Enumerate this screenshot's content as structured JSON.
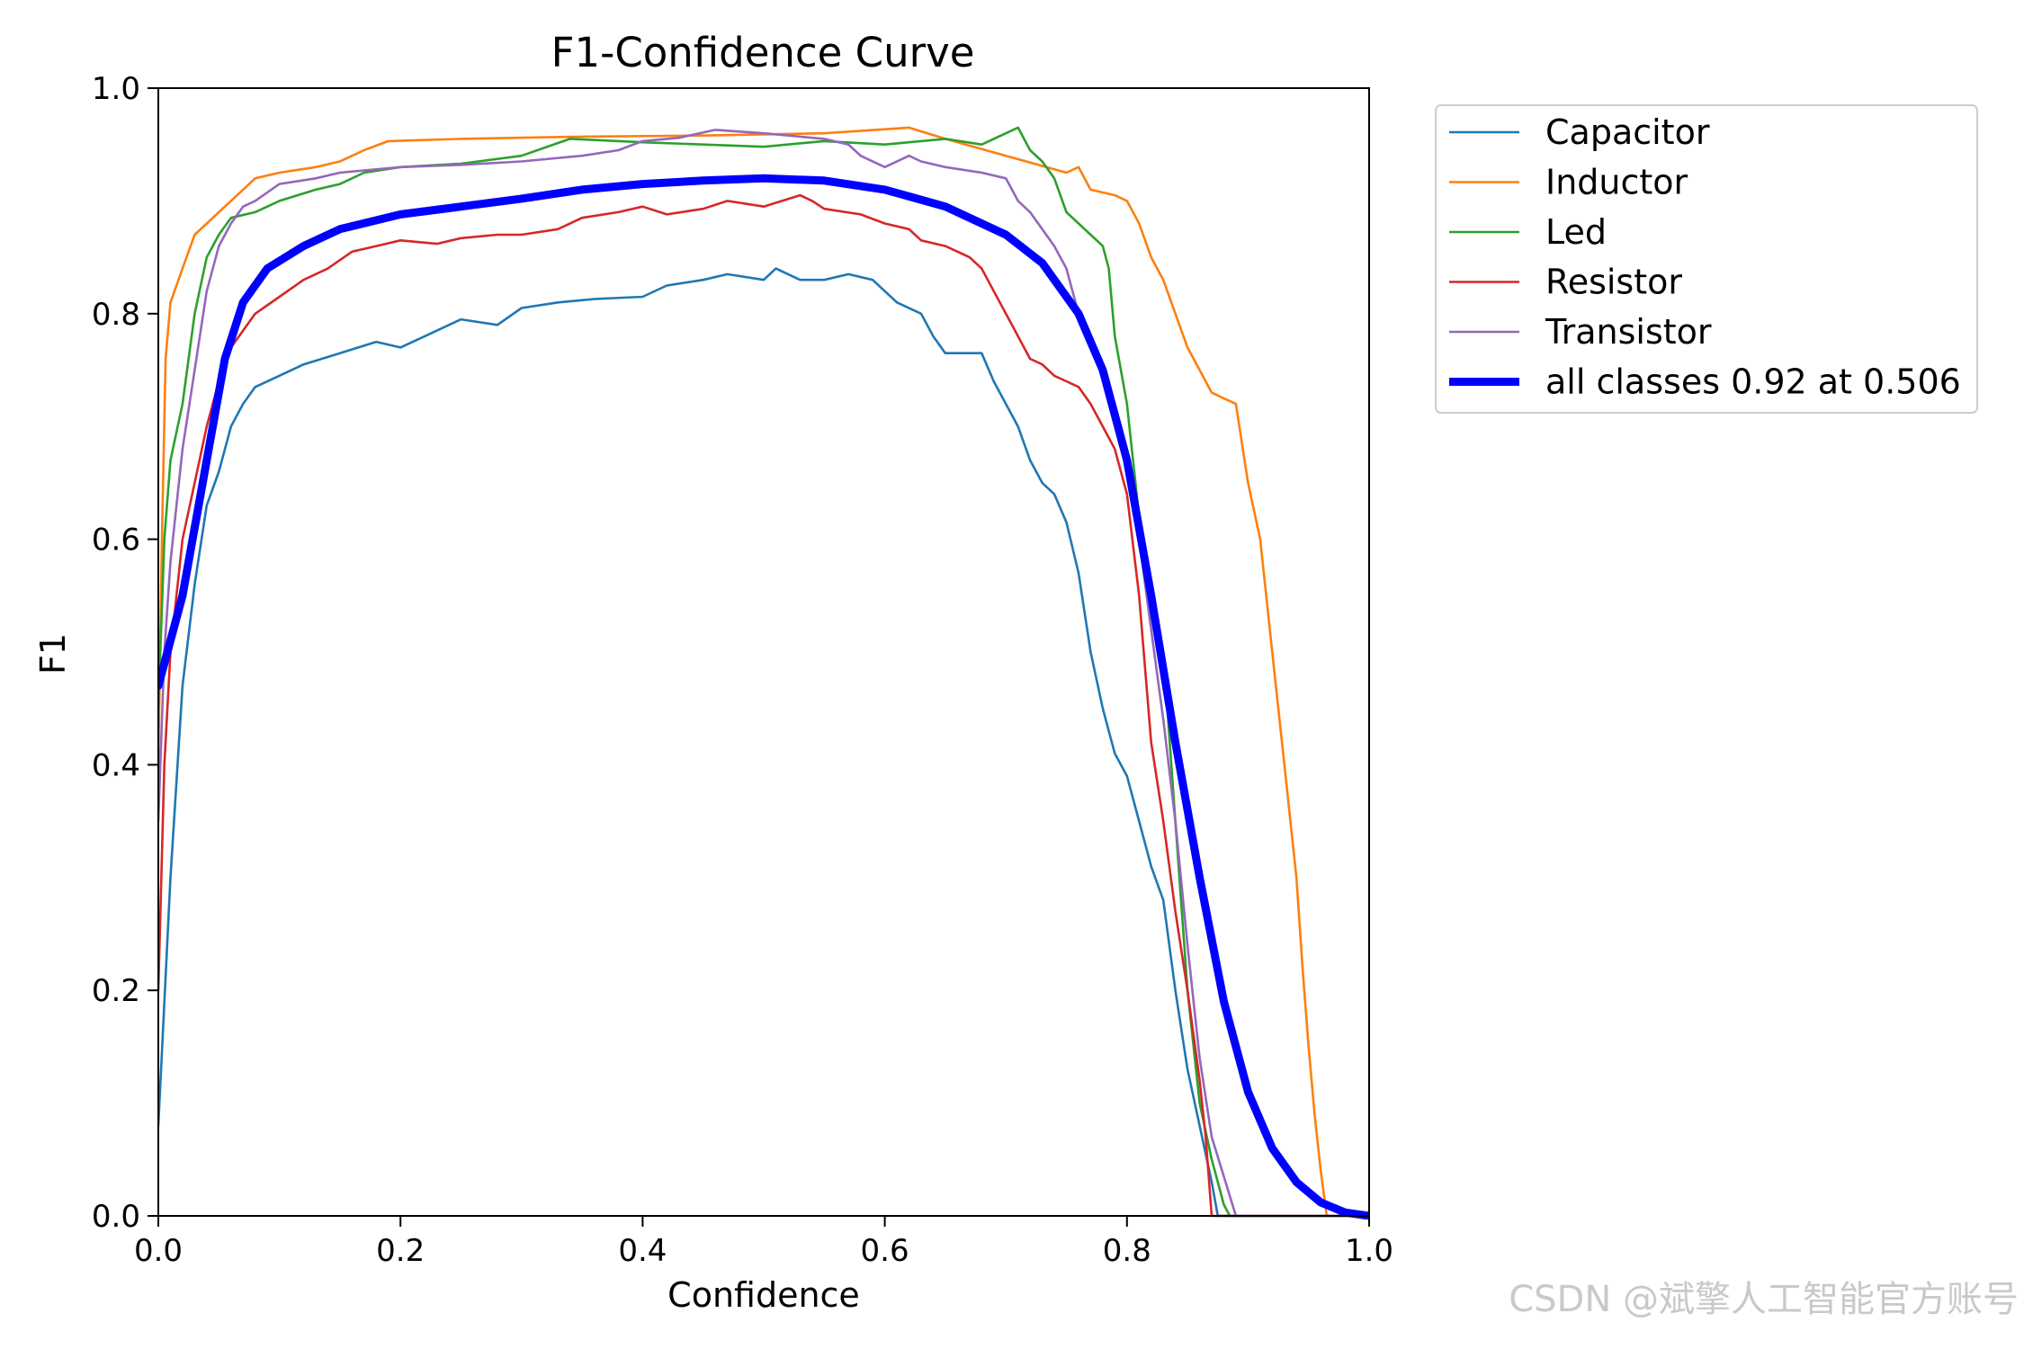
{
  "chart_data": {
    "type": "line",
    "title": "F1-Confidence Curve",
    "xlabel": "Confidence",
    "ylabel": "F1",
    "xlim": [
      0,
      1
    ],
    "ylim": [
      0,
      1
    ],
    "xticks": [
      "0.0",
      "0.2",
      "0.4",
      "0.6",
      "0.8",
      "1.0"
    ],
    "yticks": [
      "0.0",
      "0.2",
      "0.4",
      "0.6",
      "0.8",
      "1.0"
    ],
    "grid": false,
    "legend_position": "outside-top-right",
    "series": [
      {
        "name": "Capacitor",
        "color": "#1f77b4",
        "width": "thin",
        "points": [
          [
            0,
            0.08
          ],
          [
            0.01,
            0.3
          ],
          [
            0.02,
            0.47
          ],
          [
            0.03,
            0.56
          ],
          [
            0.04,
            0.63
          ],
          [
            0.05,
            0.66
          ],
          [
            0.06,
            0.7
          ],
          [
            0.07,
            0.72
          ],
          [
            0.08,
            0.735
          ],
          [
            0.1,
            0.745
          ],
          [
            0.12,
            0.755
          ],
          [
            0.15,
            0.765
          ],
          [
            0.18,
            0.775
          ],
          [
            0.2,
            0.77
          ],
          [
            0.22,
            0.78
          ],
          [
            0.25,
            0.795
          ],
          [
            0.28,
            0.79
          ],
          [
            0.3,
            0.805
          ],
          [
            0.33,
            0.81
          ],
          [
            0.36,
            0.813
          ],
          [
            0.4,
            0.815
          ],
          [
            0.42,
            0.825
          ],
          [
            0.45,
            0.83
          ],
          [
            0.47,
            0.835
          ],
          [
            0.5,
            0.83
          ],
          [
            0.51,
            0.84
          ],
          [
            0.53,
            0.83
          ],
          [
            0.55,
            0.83
          ],
          [
            0.57,
            0.835
          ],
          [
            0.59,
            0.83
          ],
          [
            0.61,
            0.81
          ],
          [
            0.63,
            0.8
          ],
          [
            0.64,
            0.78
          ],
          [
            0.65,
            0.765
          ],
          [
            0.68,
            0.765
          ],
          [
            0.69,
            0.74
          ],
          [
            0.7,
            0.72
          ],
          [
            0.71,
            0.7
          ],
          [
            0.72,
            0.67
          ],
          [
            0.73,
            0.65
          ],
          [
            0.74,
            0.64
          ],
          [
            0.75,
            0.615
          ],
          [
            0.76,
            0.57
          ],
          [
            0.77,
            0.5
          ],
          [
            0.78,
            0.45
          ],
          [
            0.79,
            0.41
          ],
          [
            0.8,
            0.39
          ],
          [
            0.81,
            0.35
          ],
          [
            0.82,
            0.31
          ],
          [
            0.83,
            0.28
          ],
          [
            0.84,
            0.2
          ],
          [
            0.85,
            0.13
          ],
          [
            0.86,
            0.08
          ],
          [
            0.87,
            0.03
          ],
          [
            0.875,
            0.0
          ],
          [
            0.9,
            0.0
          ],
          [
            1.0,
            0.0
          ]
        ]
      },
      {
        "name": "Inductor",
        "color": "#ff7f0e",
        "width": "thin",
        "points": [
          [
            0,
            0.4
          ],
          [
            0.003,
            0.6
          ],
          [
            0.006,
            0.76
          ],
          [
            0.01,
            0.81
          ],
          [
            0.02,
            0.84
          ],
          [
            0.03,
            0.87
          ],
          [
            0.04,
            0.88
          ],
          [
            0.05,
            0.89
          ],
          [
            0.06,
            0.9
          ],
          [
            0.07,
            0.91
          ],
          [
            0.08,
            0.92
          ],
          [
            0.1,
            0.925
          ],
          [
            0.13,
            0.93
          ],
          [
            0.15,
            0.935
          ],
          [
            0.17,
            0.945
          ],
          [
            0.19,
            0.953
          ],
          [
            0.25,
            0.955
          ],
          [
            0.35,
            0.957
          ],
          [
            0.45,
            0.958
          ],
          [
            0.55,
            0.96
          ],
          [
            0.62,
            0.965
          ],
          [
            0.65,
            0.955
          ],
          [
            0.7,
            0.94
          ],
          [
            0.75,
            0.925
          ],
          [
            0.76,
            0.93
          ],
          [
            0.77,
            0.91
          ],
          [
            0.79,
            0.905
          ],
          [
            0.8,
            0.9
          ],
          [
            0.81,
            0.88
          ],
          [
            0.82,
            0.85
          ],
          [
            0.83,
            0.83
          ],
          [
            0.84,
            0.8
          ],
          [
            0.85,
            0.77
          ],
          [
            0.86,
            0.75
          ],
          [
            0.87,
            0.73
          ],
          [
            0.88,
            0.725
          ],
          [
            0.89,
            0.72
          ],
          [
            0.9,
            0.65
          ],
          [
            0.91,
            0.6
          ],
          [
            0.92,
            0.5
          ],
          [
            0.93,
            0.4
          ],
          [
            0.935,
            0.35
          ],
          [
            0.94,
            0.3
          ],
          [
            0.945,
            0.22
          ],
          [
            0.95,
            0.15
          ],
          [
            0.955,
            0.09
          ],
          [
            0.96,
            0.04
          ],
          [
            0.965,
            0.0
          ],
          [
            1.0,
            0.0
          ]
        ]
      },
      {
        "name": "Led",
        "color": "#2ca02c",
        "width": "thin",
        "points": [
          [
            0,
            0.45
          ],
          [
            0.005,
            0.6
          ],
          [
            0.01,
            0.67
          ],
          [
            0.02,
            0.72
          ],
          [
            0.03,
            0.8
          ],
          [
            0.04,
            0.85
          ],
          [
            0.05,
            0.87
          ],
          [
            0.06,
            0.885
          ],
          [
            0.08,
            0.89
          ],
          [
            0.1,
            0.9
          ],
          [
            0.13,
            0.91
          ],
          [
            0.15,
            0.915
          ],
          [
            0.17,
            0.925
          ],
          [
            0.2,
            0.93
          ],
          [
            0.25,
            0.933
          ],
          [
            0.3,
            0.94
          ],
          [
            0.34,
            0.955
          ],
          [
            0.4,
            0.952
          ],
          [
            0.45,
            0.95
          ],
          [
            0.5,
            0.948
          ],
          [
            0.55,
            0.953
          ],
          [
            0.6,
            0.95
          ],
          [
            0.65,
            0.955
          ],
          [
            0.68,
            0.95
          ],
          [
            0.7,
            0.96
          ],
          [
            0.71,
            0.965
          ],
          [
            0.72,
            0.945
          ],
          [
            0.73,
            0.935
          ],
          [
            0.74,
            0.92
          ],
          [
            0.75,
            0.89
          ],
          [
            0.76,
            0.88
          ],
          [
            0.77,
            0.87
          ],
          [
            0.78,
            0.86
          ],
          [
            0.785,
            0.84
          ],
          [
            0.79,
            0.78
          ],
          [
            0.8,
            0.72
          ],
          [
            0.81,
            0.62
          ],
          [
            0.815,
            0.58
          ],
          [
            0.82,
            0.56
          ],
          [
            0.83,
            0.5
          ],
          [
            0.84,
            0.35
          ],
          [
            0.85,
            0.2
          ],
          [
            0.86,
            0.1
          ],
          [
            0.87,
            0.05
          ],
          [
            0.875,
            0.03
          ],
          [
            0.88,
            0.01
          ],
          [
            0.885,
            0.0
          ],
          [
            0.9,
            0.0
          ],
          [
            1.0,
            0.0
          ]
        ]
      },
      {
        "name": "Resistor",
        "color": "#d62728",
        "width": "thin",
        "points": [
          [
            0,
            0.2
          ],
          [
            0.005,
            0.4
          ],
          [
            0.01,
            0.5
          ],
          [
            0.02,
            0.6
          ],
          [
            0.03,
            0.65
          ],
          [
            0.04,
            0.7
          ],
          [
            0.05,
            0.74
          ],
          [
            0.06,
            0.77
          ],
          [
            0.07,
            0.785
          ],
          [
            0.08,
            0.8
          ],
          [
            0.1,
            0.815
          ],
          [
            0.12,
            0.83
          ],
          [
            0.14,
            0.84
          ],
          [
            0.16,
            0.855
          ],
          [
            0.18,
            0.86
          ],
          [
            0.2,
            0.865
          ],
          [
            0.23,
            0.862
          ],
          [
            0.25,
            0.867
          ],
          [
            0.28,
            0.87
          ],
          [
            0.3,
            0.87
          ],
          [
            0.33,
            0.875
          ],
          [
            0.35,
            0.885
          ],
          [
            0.38,
            0.89
          ],
          [
            0.4,
            0.895
          ],
          [
            0.42,
            0.888
          ],
          [
            0.45,
            0.893
          ],
          [
            0.47,
            0.9
          ],
          [
            0.5,
            0.895
          ],
          [
            0.53,
            0.905
          ],
          [
            0.54,
            0.9
          ],
          [
            0.55,
            0.893
          ],
          [
            0.58,
            0.888
          ],
          [
            0.6,
            0.88
          ],
          [
            0.62,
            0.875
          ],
          [
            0.63,
            0.865
          ],
          [
            0.65,
            0.86
          ],
          [
            0.67,
            0.85
          ],
          [
            0.68,
            0.84
          ],
          [
            0.69,
            0.82
          ],
          [
            0.7,
            0.8
          ],
          [
            0.71,
            0.78
          ],
          [
            0.72,
            0.76
          ],
          [
            0.73,
            0.755
          ],
          [
            0.74,
            0.745
          ],
          [
            0.75,
            0.74
          ],
          [
            0.76,
            0.735
          ],
          [
            0.77,
            0.72
          ],
          [
            0.78,
            0.7
          ],
          [
            0.79,
            0.68
          ],
          [
            0.8,
            0.64
          ],
          [
            0.81,
            0.55
          ],
          [
            0.82,
            0.42
          ],
          [
            0.83,
            0.35
          ],
          [
            0.84,
            0.27
          ],
          [
            0.85,
            0.2
          ],
          [
            0.86,
            0.12
          ],
          [
            0.865,
            0.07
          ],
          [
            0.87,
            0.0
          ],
          [
            1.0,
            0.0
          ]
        ]
      },
      {
        "name": "Transistor",
        "color": "#9467bd",
        "width": "thin",
        "points": [
          [
            0,
            0.35
          ],
          [
            0.005,
            0.5
          ],
          [
            0.01,
            0.58
          ],
          [
            0.02,
            0.68
          ],
          [
            0.03,
            0.75
          ],
          [
            0.04,
            0.82
          ],
          [
            0.05,
            0.86
          ],
          [
            0.06,
            0.88
          ],
          [
            0.07,
            0.895
          ],
          [
            0.08,
            0.9
          ],
          [
            0.1,
            0.915
          ],
          [
            0.13,
            0.92
          ],
          [
            0.15,
            0.925
          ],
          [
            0.2,
            0.93
          ],
          [
            0.25,
            0.932
          ],
          [
            0.3,
            0.935
          ],
          [
            0.35,
            0.94
          ],
          [
            0.38,
            0.945
          ],
          [
            0.4,
            0.953
          ],
          [
            0.43,
            0.956
          ],
          [
            0.46,
            0.963
          ],
          [
            0.5,
            0.96
          ],
          [
            0.55,
            0.955
          ],
          [
            0.57,
            0.95
          ],
          [
            0.58,
            0.94
          ],
          [
            0.6,
            0.93
          ],
          [
            0.62,
            0.94
          ],
          [
            0.63,
            0.935
          ],
          [
            0.65,
            0.93
          ],
          [
            0.68,
            0.925
          ],
          [
            0.7,
            0.92
          ],
          [
            0.71,
            0.9
          ],
          [
            0.72,
            0.89
          ],
          [
            0.73,
            0.875
          ],
          [
            0.74,
            0.86
          ],
          [
            0.75,
            0.84
          ],
          [
            0.76,
            0.8
          ],
          [
            0.77,
            0.77
          ],
          [
            0.78,
            0.75
          ],
          [
            0.79,
            0.72
          ],
          [
            0.8,
            0.68
          ],
          [
            0.81,
            0.6
          ],
          [
            0.82,
            0.52
          ],
          [
            0.83,
            0.44
          ],
          [
            0.84,
            0.35
          ],
          [
            0.85,
            0.24
          ],
          [
            0.86,
            0.14
          ],
          [
            0.87,
            0.07
          ],
          [
            0.88,
            0.035
          ],
          [
            0.89,
            0.0
          ],
          [
            1.0,
            0.0
          ]
        ]
      },
      {
        "name": "all classes 0.92 at 0.506",
        "color": "#0000ff",
        "width": "thick",
        "points": [
          [
            0,
            0.47
          ],
          [
            0.02,
            0.55
          ],
          [
            0.04,
            0.67
          ],
          [
            0.055,
            0.76
          ],
          [
            0.07,
            0.81
          ],
          [
            0.09,
            0.84
          ],
          [
            0.12,
            0.86
          ],
          [
            0.15,
            0.875
          ],
          [
            0.2,
            0.888
          ],
          [
            0.25,
            0.895
          ],
          [
            0.3,
            0.902
          ],
          [
            0.35,
            0.91
          ],
          [
            0.4,
            0.915
          ],
          [
            0.45,
            0.918
          ],
          [
            0.5,
            0.92
          ],
          [
            0.55,
            0.918
          ],
          [
            0.6,
            0.91
          ],
          [
            0.65,
            0.895
          ],
          [
            0.7,
            0.87
          ],
          [
            0.73,
            0.845
          ],
          [
            0.76,
            0.8
          ],
          [
            0.78,
            0.75
          ],
          [
            0.8,
            0.67
          ],
          [
            0.82,
            0.55
          ],
          [
            0.84,
            0.42
          ],
          [
            0.86,
            0.3
          ],
          [
            0.88,
            0.19
          ],
          [
            0.9,
            0.11
          ],
          [
            0.92,
            0.06
          ],
          [
            0.94,
            0.03
          ],
          [
            0.96,
            0.012
          ],
          [
            0.98,
            0.003
          ],
          [
            1.0,
            0.0
          ]
        ]
      }
    ]
  },
  "watermark": "CSDN @斌擎人工智能官方账号"
}
